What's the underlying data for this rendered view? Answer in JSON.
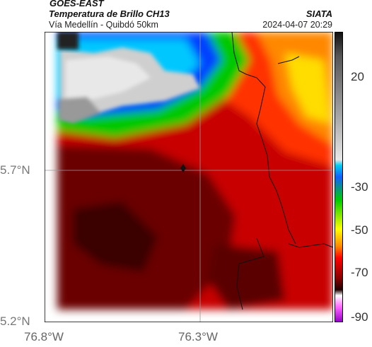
{
  "header": {
    "satellite": "GOES-EAST",
    "product": "Temperatura de Brillo CH13",
    "region": "Vía Medellín - Quibdó 50km",
    "organization": "SIATA",
    "timestamp": "2024-04-07 20:29"
  },
  "axes": {
    "lat_labels": [
      "5.7°N",
      "5.2°N"
    ],
    "lon_labels": [
      "76.8°W",
      "76.3°W"
    ]
  },
  "colorbar": {
    "tick_labels": [
      "20",
      "-30",
      "-50",
      "-70",
      "-90"
    ],
    "colors": [
      "#111111",
      "#555555",
      "#aaaaaa",
      "#e8e8e8",
      "#00ccee",
      "#1060ff",
      "#00cc00",
      "#ffff00",
      "#ff8800",
      "#ff0000",
      "#880000",
      "#200000",
      "#ffffff",
      "#ff66ff",
      "#9900cc"
    ]
  }
}
